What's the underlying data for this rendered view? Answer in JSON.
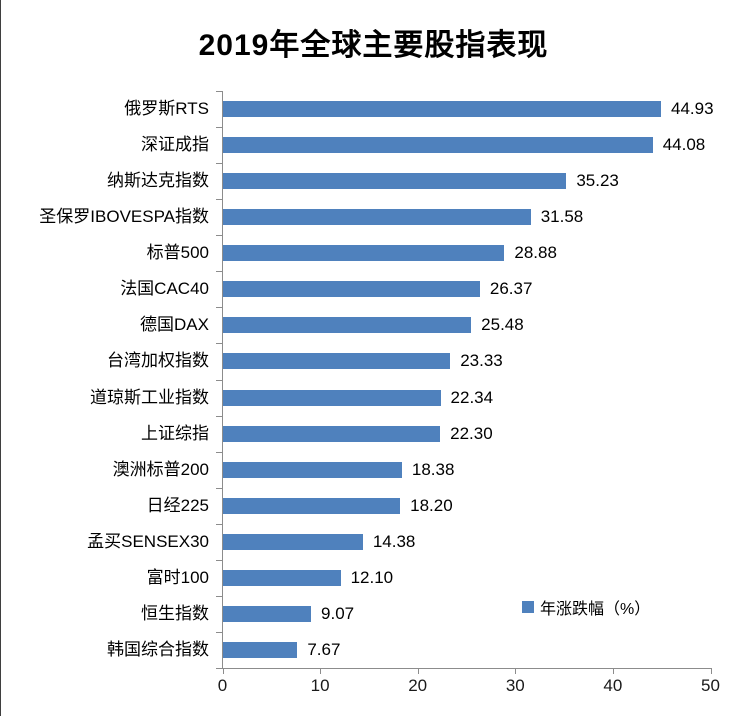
{
  "title": "2019年全球主要股指表现",
  "legend": {
    "label": "年涨跌幅（%）"
  },
  "colors": {
    "bar": "#4f81bd",
    "axis_line": "#8c8c8c",
    "text": "#000000"
  },
  "chart_data": {
    "type": "bar",
    "orientation": "horizontal",
    "title": "2019年全球主要股指表现",
    "categories": [
      "俄罗斯RTS",
      "深证成指",
      "纳斯达克指数",
      "圣保罗IBOVESPA指数",
      "标普500",
      "法国CAC40",
      "德国DAX",
      "台湾加权指数",
      "道琼斯工业指数",
      "上证综指",
      "澳洲标普200",
      "日经225",
      "孟买SENSEX30",
      "富时100",
      "恒生指数",
      "韩国综合指数"
    ],
    "values": [
      44.93,
      44.08,
      35.23,
      31.58,
      28.88,
      26.37,
      25.48,
      23.33,
      22.34,
      22.3,
      18.38,
      18.2,
      14.38,
      12.1,
      9.07,
      7.67
    ],
    "value_labels": [
      "44.93",
      "44.08",
      "35.23",
      "31.58",
      "28.88",
      "26.37",
      "25.48",
      "23.33",
      "22.34",
      "22.30",
      "18.38",
      "18.20",
      "14.38",
      "12.10",
      "9.07",
      "7.67"
    ],
    "xlabel": "",
    "ylabel": "",
    "xlim": [
      0,
      50
    ],
    "x_ticks": [
      0,
      10,
      20,
      30,
      40,
      50
    ],
    "grid": false,
    "legend_entries": [
      "年涨跌幅（%）"
    ],
    "legend_position": "inside-bottom-right",
    "bar_color": "#4f81bd"
  }
}
